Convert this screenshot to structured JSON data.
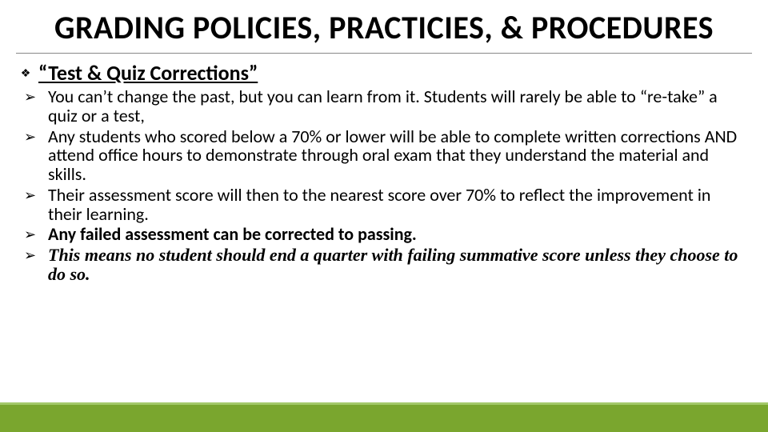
{
  "title": "GRADING POLICIES, PRACTICIES, & PROCEDURES",
  "section": {
    "heading": "“Test & Quiz Corrections”",
    "bullets": [
      {
        "text": "You can’t change the past, but you can learn from it.  Students will rarely be able to “re-take” a quiz or a test,",
        "style": "normal"
      },
      {
        "text": "Any students who scored below a 70% or lower will be able to complete written corrections AND attend office hours to demonstrate through oral exam that they understand the material and skills.",
        "style": "normal"
      },
      {
        "text": "Their assessment score will then to the nearest score over 70% to reflect the improvement in their learning.",
        "style": "normal"
      },
      {
        "text": "Any failed assessment can be corrected to passing.",
        "style": "bold"
      },
      {
        "text": "This means no student should end a quarter with failing summative score unless they choose to do so.",
        "style": "italic"
      }
    ]
  },
  "style": {
    "title_fontsize": 40,
    "section_fontsize": 26,
    "bullet_fontsize": 22,
    "title_color": "#000000",
    "text_color": "#000000",
    "footer_bar_color": "#7aa62e",
    "footer_line_color": "#a4c96a",
    "background_color": "#ffffff",
    "bullet_glyph": "➢",
    "section_glyph": "❖"
  }
}
